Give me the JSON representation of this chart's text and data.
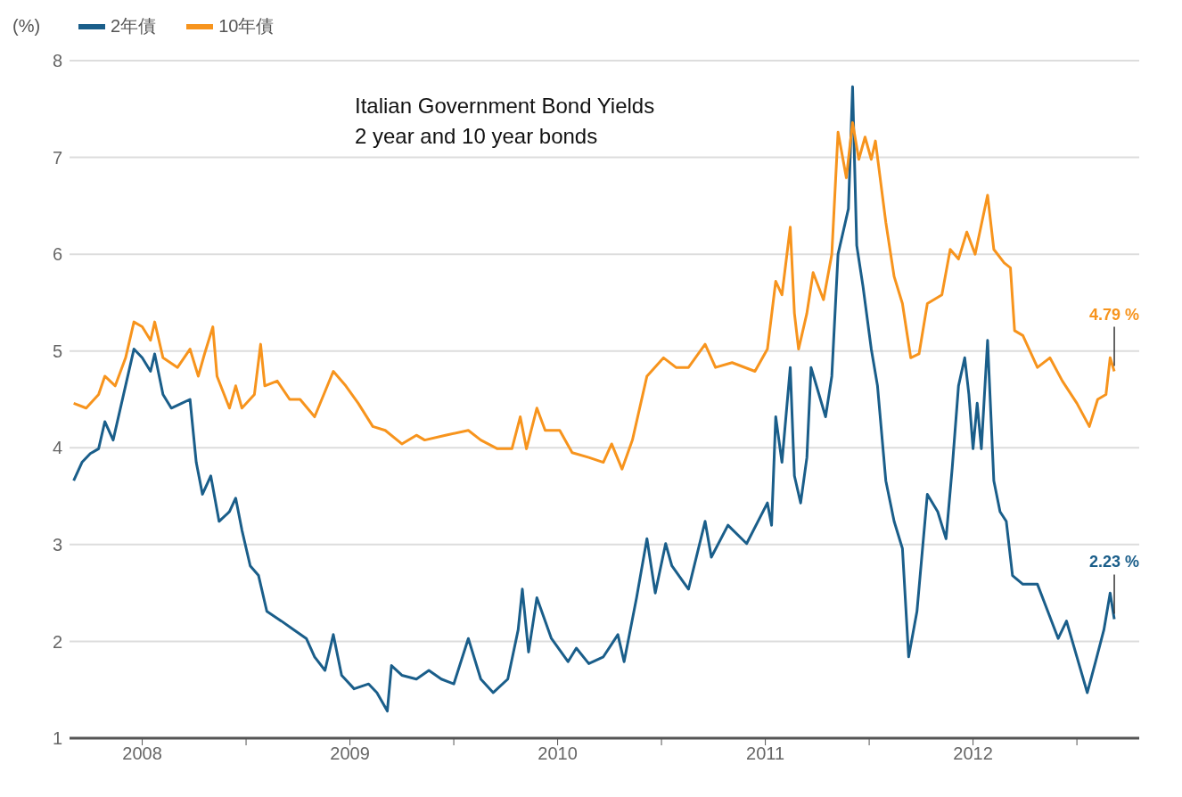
{
  "chart_data": {
    "type": "line",
    "title": "Italian Government Bond Yields",
    "subtitle": "2 year and 10 year bonds",
    "ylabel": "(%)",
    "legend": "top left",
    "grid": "y",
    "marker": "none",
    "line_style": "solid",
    "xlim": [
      2008.15,
      2013.3
    ],
    "xticks": [
      {
        "value": 2008.5,
        "label": "2008"
      },
      {
        "value": 2009,
        "label": null
      },
      {
        "value": 2009.5,
        "label": "2009"
      },
      {
        "value": 2010,
        "label": null
      },
      {
        "value": 2010.5,
        "label": "2010"
      },
      {
        "value": 2011,
        "label": null
      },
      {
        "value": 2011.5,
        "label": "2011"
      },
      {
        "value": 2012,
        "label": null
      },
      {
        "value": 2012.5,
        "label": "2012"
      },
      {
        "value": 2013,
        "label": null
      }
    ],
    "ylim": [
      1,
      8
    ],
    "yticks": [
      1,
      2,
      3,
      4,
      5,
      6,
      7,
      8
    ],
    "series": [
      {
        "name": "2年債",
        "color": "#1a5e8a",
        "x": [
          2008.17,
          2008.21,
          2008.25,
          2008.29,
          2008.32,
          2008.36,
          2008.41,
          2008.46,
          2008.5,
          2008.54,
          2008.56,
          2008.6,
          2008.64,
          2008.69,
          2008.73,
          2008.76,
          2008.79,
          2008.83,
          2008.87,
          2008.92,
          2008.95,
          2008.98,
          2009.02,
          2009.06,
          2009.1,
          2009.17,
          2009.23,
          2009.29,
          2009.33,
          2009.38,
          2009.42,
          2009.46,
          2009.52,
          2009.59,
          2009.63,
          2009.68,
          2009.7,
          2009.75,
          2009.82,
          2009.88,
          2009.94,
          2010.0,
          2010.07,
          2010.13,
          2010.19,
          2010.26,
          2010.31,
          2010.33,
          2010.36,
          2010.4,
          2010.47,
          2010.55,
          2010.59,
          2010.65,
          2010.72,
          2010.79,
          2010.82,
          2010.88,
          2010.93,
          2010.97,
          2011.02,
          2011.05,
          2011.13,
          2011.21,
          2011.24,
          2011.32,
          2011.41,
          2011.51,
          2011.53,
          2011.55,
          2011.58,
          2011.62,
          2011.64,
          2011.67,
          2011.7,
          2011.72,
          2011.79,
          2011.82,
          2011.85,
          2011.9,
          2011.92,
          2011.94,
          2011.97,
          2012.01,
          2012.04,
          2012.08,
          2012.12,
          2012.16,
          2012.19,
          2012.23,
          2012.28,
          2012.33,
          2012.37,
          2012.4,
          2012.43,
          2012.46,
          2012.48,
          2012.5,
          2012.52,
          2012.54,
          2012.57,
          2012.6,
          2012.63,
          2012.66,
          2012.69,
          2012.74,
          2012.81,
          2012.86,
          2012.91,
          2012.95,
          2013.0,
          2013.05,
          2013.09,
          2013.13,
          2013.16,
          2013.18
        ],
        "values": [
          3.66,
          3.85,
          3.94,
          3.99,
          4.27,
          4.08,
          4.55,
          5.02,
          4.93,
          4.79,
          4.97,
          4.55,
          4.41,
          4.46,
          4.5,
          3.85,
          3.52,
          3.71,
          3.24,
          3.34,
          3.48,
          3.15,
          2.78,
          2.68,
          2.31,
          2.21,
          2.12,
          2.03,
          1.84,
          1.7,
          2.07,
          1.65,
          1.51,
          1.56,
          1.47,
          1.28,
          1.75,
          1.65,
          1.61,
          1.7,
          1.61,
          1.56,
          2.03,
          1.61,
          1.47,
          1.61,
          2.12,
          2.54,
          1.89,
          2.45,
          2.03,
          1.79,
          1.93,
          1.77,
          1.84,
          2.07,
          1.79,
          2.45,
          3.06,
          2.5,
          3.01,
          2.78,
          2.54,
          3.24,
          2.87,
          3.2,
          3.01,
          3.43,
          3.2,
          4.32,
          3.85,
          4.83,
          3.71,
          3.43,
          3.9,
          4.83,
          4.32,
          4.74,
          6.0,
          6.47,
          7.73,
          6.09,
          5.67,
          5.02,
          4.64,
          3.66,
          3.24,
          2.96,
          1.84,
          2.31,
          3.52,
          3.34,
          3.06,
          3.8,
          4.64,
          4.93,
          4.55,
          3.99,
          4.46,
          3.99,
          5.11,
          3.66,
          3.34,
          3.24,
          2.68,
          2.59,
          2.59,
          2.31,
          2.03,
          2.21,
          1.84,
          1.47,
          1.79,
          2.12,
          2.5,
          2.23
        ]
      },
      {
        "name": "10年債",
        "color": "#f7941d",
        "x": [
          2008.17,
          2008.23,
          2008.29,
          2008.32,
          2008.37,
          2008.42,
          2008.46,
          2008.5,
          2008.54,
          2008.56,
          2008.6,
          2008.67,
          2008.73,
          2008.77,
          2008.8,
          2008.84,
          2008.86,
          2008.92,
          2008.95,
          2008.98,
          2009.04,
          2009.07,
          2009.09,
          2009.15,
          2009.21,
          2009.26,
          2009.33,
          2009.42,
          2009.48,
          2009.54,
          2009.61,
          2009.67,
          2009.75,
          2009.82,
          2009.86,
          2009.96,
          2010.07,
          2010.13,
          2010.21,
          2010.28,
          2010.32,
          2010.35,
          2010.4,
          2010.44,
          2010.51,
          2010.57,
          2010.65,
          2010.72,
          2010.76,
          2010.81,
          2010.86,
          2010.93,
          2011.01,
          2011.07,
          2011.13,
          2011.21,
          2011.26,
          2011.34,
          2011.45,
          2011.51,
          2011.55,
          2011.58,
          2011.62,
          2011.64,
          2011.66,
          2011.7,
          2011.73,
          2011.78,
          2011.82,
          2011.85,
          2011.89,
          2011.92,
          2011.95,
          2011.98,
          2012.01,
          2012.03,
          2012.08,
          2012.12,
          2012.16,
          2012.2,
          2012.24,
          2012.28,
          2012.35,
          2012.39,
          2012.43,
          2012.47,
          2012.51,
          2012.57,
          2012.6,
          2012.65,
          2012.68,
          2012.7,
          2012.74,
          2012.81,
          2012.87,
          2012.93,
          2013.0,
          2013.06,
          2013.1,
          2013.14,
          2013.16,
          2013.18
        ],
        "values": [
          4.46,
          4.41,
          4.55,
          4.74,
          4.64,
          4.93,
          5.3,
          5.25,
          5.11,
          5.3,
          4.93,
          4.83,
          5.02,
          4.74,
          4.97,
          5.25,
          4.74,
          4.41,
          4.64,
          4.41,
          4.55,
          5.07,
          4.64,
          4.69,
          4.5,
          4.5,
          4.32,
          4.79,
          4.64,
          4.46,
          4.22,
          4.18,
          4.04,
          4.13,
          4.08,
          4.13,
          4.18,
          4.08,
          3.99,
          3.99,
          4.32,
          3.99,
          4.41,
          4.18,
          4.18,
          3.95,
          3.9,
          3.85,
          4.04,
          3.78,
          4.08,
          4.74,
          4.93,
          4.83,
          4.83,
          5.07,
          4.83,
          4.88,
          4.79,
          5.02,
          5.72,
          5.58,
          6.28,
          5.39,
          5.02,
          5.39,
          5.81,
          5.53,
          6.0,
          7.26,
          6.79,
          7.36,
          6.98,
          7.21,
          6.98,
          7.17,
          6.33,
          5.77,
          5.49,
          4.93,
          4.97,
          5.49,
          5.58,
          6.05,
          5.95,
          6.23,
          6.0,
          6.61,
          6.05,
          5.91,
          5.86,
          5.21,
          5.16,
          4.83,
          4.93,
          4.69,
          4.46,
          4.22,
          4.5,
          4.55,
          4.93,
          4.79
        ]
      }
    ],
    "annotations": [
      {
        "text": "4.79 %",
        "x": 2013.18,
        "y": 4.79
      },
      {
        "text": "2.23 %",
        "x": 2013.18,
        "y": 2.23
      }
    ]
  }
}
